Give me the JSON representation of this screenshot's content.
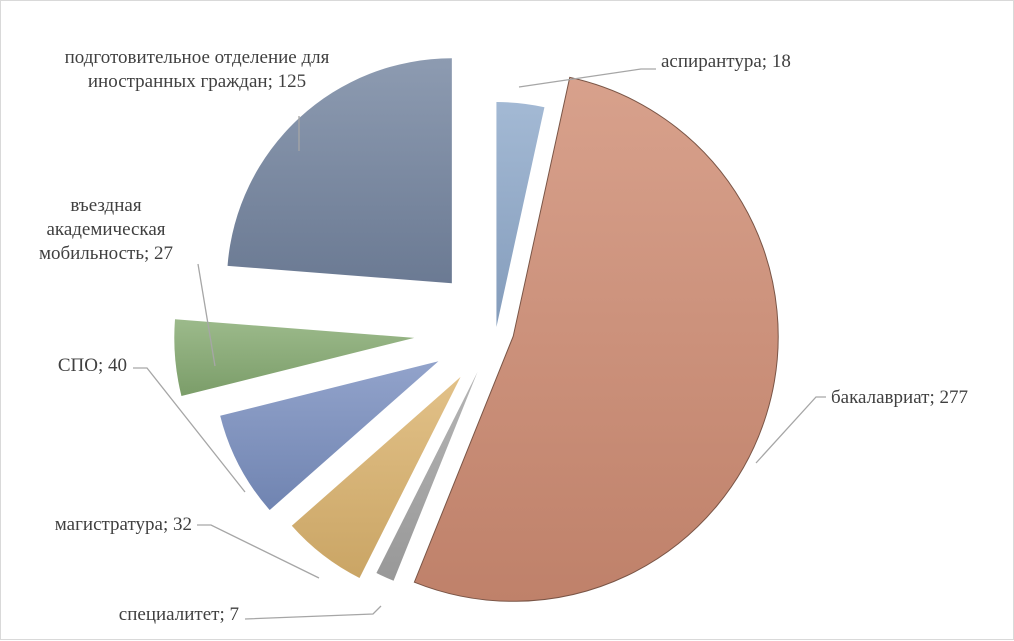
{
  "chart_data": {
    "type": "pie",
    "exploded": true,
    "legend": "none",
    "grid": false,
    "slices": [
      {
        "label": "аспирантура",
        "value": 18,
        "color": "#8faacb",
        "label_lines": [
          "аспирантура; 18"
        ]
      },
      {
        "label": "бакалавриат",
        "value": 277,
        "color": "#d08c73",
        "label_lines": [
          "бакалавриат; 277"
        ]
      },
      {
        "label": "специалитет",
        "value": 7,
        "color": "#a5a5a5",
        "label_lines": [
          "специалитет; 7"
        ]
      },
      {
        "label": "магистратура",
        "value": 32,
        "color": "#dcb36e",
        "label_lines": [
          "магистратура; 32"
        ]
      },
      {
        "label": "СПО",
        "value": 40,
        "color": "#7a8fc0",
        "label_lines": [
          "СПО; 40"
        ]
      },
      {
        "label": "въездная академическая мобильность",
        "value": 27,
        "color": "#86ab72",
        "label_lines": [
          "въездная",
          "академическая",
          "мобильность; 27"
        ]
      },
      {
        "label": "подготовительное отделение для иностранных граждан",
        "value": 125,
        "color": "#7485a0",
        "label_lines": [
          "подготовительное отделение для",
          "иностранных граждан; 125"
        ]
      }
    ]
  }
}
